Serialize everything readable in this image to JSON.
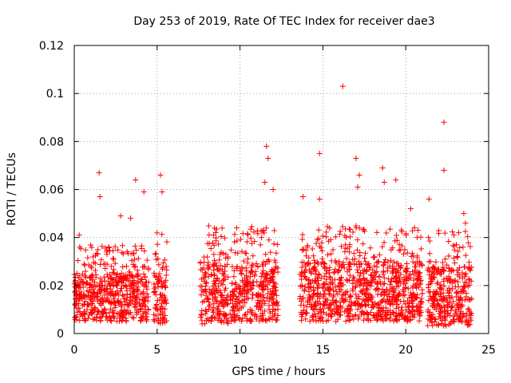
{
  "chart_data": {
    "type": "scatter",
    "title": "Day 253 of 2019, Rate Of TEC Index for receiver dae3",
    "xlabel": "GPS time / hours",
    "ylabel": "ROTI / TECUs",
    "xlim": [
      0,
      25
    ],
    "ylim": [
      0,
      0.12
    ],
    "x_ticks": [
      0,
      5,
      10,
      15,
      20,
      25
    ],
    "y_ticks": [
      0,
      0.02,
      0.04,
      0.06,
      0.08,
      0.1,
      0.12
    ],
    "x_tick_labels": [
      "0",
      "5",
      "10",
      "15",
      "20",
      "25"
    ],
    "y_tick_labels": [
      "0",
      "0.02",
      "0.04",
      "0.06",
      "0.08",
      "0.1",
      "0.12"
    ],
    "grid": true,
    "marker": "+",
    "color": "#ff0000",
    "series": [
      {
        "name": "ROTI",
        "segments": [
          {
            "x_range": [
              0.0,
              4.5
            ],
            "typical": [
              0.005,
              0.025
            ]
          },
          {
            "x_range": [
              4.8,
              5.6
            ],
            "typical": [
              0.004,
              0.028
            ]
          },
          {
            "x_range": [
              7.6,
              9.3
            ],
            "typical": [
              0.004,
              0.03
            ]
          },
          {
            "x_range": [
              9.4,
              10.5
            ],
            "typical": [
              0.005,
              0.028
            ]
          },
          {
            "x_range": [
              10.6,
              12.3
            ],
            "typical": [
              0.005,
              0.03
            ]
          },
          {
            "x_range": [
              13.6,
              21.0
            ],
            "typical": [
              0.005,
              0.03
            ]
          },
          {
            "x_range": [
              21.3,
              24.0
            ],
            "typical": [
              0.003,
              0.028
            ]
          }
        ],
        "notable_points": [
          {
            "x": 0.3,
            "y": 0.041
          },
          {
            "x": 1.5,
            "y": 0.067
          },
          {
            "x": 1.55,
            "y": 0.057
          },
          {
            "x": 3.7,
            "y": 0.064
          },
          {
            "x": 4.2,
            "y": 0.059
          },
          {
            "x": 5.2,
            "y": 0.066
          },
          {
            "x": 5.3,
            "y": 0.059
          },
          {
            "x": 8.4,
            "y": 0.041
          },
          {
            "x": 9.8,
            "y": 0.044
          },
          {
            "x": 11.3,
            "y": 0.04
          },
          {
            "x": 11.6,
            "y": 0.078
          },
          {
            "x": 11.7,
            "y": 0.073
          },
          {
            "x": 11.5,
            "y": 0.063
          },
          {
            "x": 12.0,
            "y": 0.06
          },
          {
            "x": 13.8,
            "y": 0.057
          },
          {
            "x": 14.8,
            "y": 0.075
          },
          {
            "x": 14.8,
            "y": 0.056
          },
          {
            "x": 16.2,
            "y": 0.103
          },
          {
            "x": 17.0,
            "y": 0.073
          },
          {
            "x": 17.2,
            "y": 0.066
          },
          {
            "x": 17.1,
            "y": 0.061
          },
          {
            "x": 18.6,
            "y": 0.069
          },
          {
            "x": 18.7,
            "y": 0.063
          },
          {
            "x": 19.4,
            "y": 0.064
          },
          {
            "x": 20.3,
            "y": 0.052
          },
          {
            "x": 21.4,
            "y": 0.056
          },
          {
            "x": 22.3,
            "y": 0.088
          },
          {
            "x": 22.3,
            "y": 0.068
          },
          {
            "x": 23.5,
            "y": 0.05
          },
          {
            "x": 23.6,
            "y": 0.046
          },
          {
            "x": 22.9,
            "y": 0.041
          },
          {
            "x": 2.8,
            "y": 0.049
          },
          {
            "x": 3.4,
            "y": 0.048
          }
        ]
      }
    ]
  }
}
